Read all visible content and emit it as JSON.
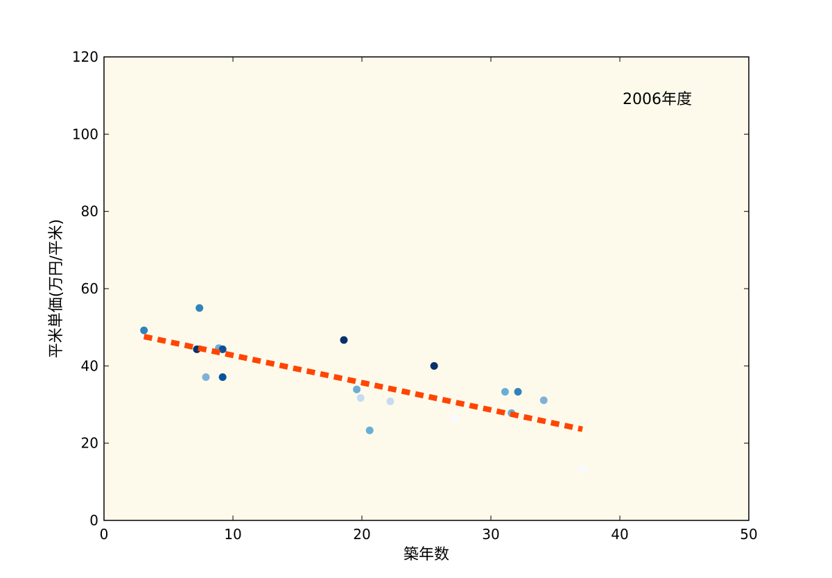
{
  "chart_data": {
    "type": "scatter",
    "title": "",
    "annotation": "2006年度",
    "xlabel": "築年数",
    "ylabel": "平米単価(万円/平米)",
    "xlim": [
      0,
      50
    ],
    "ylim": [
      0,
      120
    ],
    "x_ticks": [
      0,
      10,
      20,
      30,
      40,
      50
    ],
    "y_ticks": [
      0,
      20,
      40,
      60,
      80,
      100,
      120
    ],
    "grid": false,
    "colors": {
      "background": "#fefaeb",
      "trend": "#ff4500",
      "axes": "#000000"
    },
    "points": [
      {
        "x": 3.1,
        "y": 49.2,
        "color": "#3182bd"
      },
      {
        "x": 7.2,
        "y": 44.3,
        "color": "#08306b"
      },
      {
        "x": 7.4,
        "y": 55.0,
        "color": "#3182bd"
      },
      {
        "x": 7.9,
        "y": 37.1,
        "color": "#7fb2d9"
      },
      {
        "x": 8.9,
        "y": 44.6,
        "color": "#6aaed6"
      },
      {
        "x": 9.2,
        "y": 44.3,
        "color": "#08519c"
      },
      {
        "x": 9.2,
        "y": 37.1,
        "color": "#08519c"
      },
      {
        "x": 18.6,
        "y": 46.7,
        "color": "#08306b"
      },
      {
        "x": 19.6,
        "y": 33.9,
        "color": "#6aaed6"
      },
      {
        "x": 19.9,
        "y": 31.7,
        "color": "#c6dbef"
      },
      {
        "x": 20.6,
        "y": 23.3,
        "color": "#6aaed6"
      },
      {
        "x": 22.2,
        "y": 30.8,
        "color": "#c6dbef"
      },
      {
        "x": 25.6,
        "y": 40.0,
        "color": "#08306b"
      },
      {
        "x": 27.2,
        "y": 26.3,
        "color": "#f7fbff"
      },
      {
        "x": 31.1,
        "y": 33.3,
        "color": "#6aaed6"
      },
      {
        "x": 31.6,
        "y": 27.8,
        "color": "#6aaed6"
      },
      {
        "x": 32.1,
        "y": 33.3,
        "color": "#3182bd"
      },
      {
        "x": 34.1,
        "y": 31.1,
        "color": "#7fb2d9"
      },
      {
        "x": 37.1,
        "y": 13.3,
        "color": "#f7fbff"
      }
    ],
    "trend_line": {
      "x": [
        3.1,
        37.1
      ],
      "y": [
        47.6,
        23.6
      ]
    }
  }
}
